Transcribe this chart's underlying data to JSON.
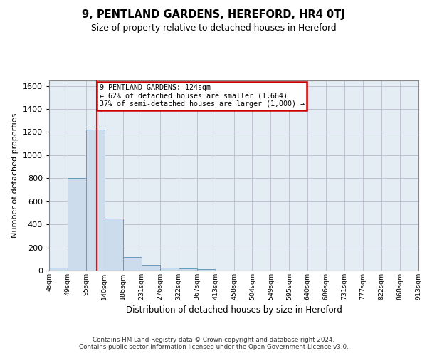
{
  "title": "9, PENTLAND GARDENS, HEREFORD, HR4 0TJ",
  "subtitle": "Size of property relative to detached houses in Hereford",
  "xlabel": "Distribution of detached houses by size in Hereford",
  "ylabel": "Number of detached properties",
  "bar_values": [
    25,
    800,
    1220,
    450,
    120,
    52,
    22,
    18,
    12,
    0,
    0,
    0,
    0,
    0,
    0,
    0,
    0,
    0,
    0,
    0
  ],
  "bar_labels": [
    "4sqm",
    "49sqm",
    "95sqm",
    "140sqm",
    "186sqm",
    "231sqm",
    "276sqm",
    "322sqm",
    "367sqm",
    "413sqm",
    "458sqm",
    "504sqm",
    "549sqm",
    "595sqm",
    "640sqm",
    "686sqm",
    "731sqm",
    "777sqm",
    "822sqm",
    "868sqm",
    "913sqm"
  ],
  "bar_color": "#ccdcec",
  "bar_edge_color": "#6699bb",
  "grid_color": "#bbbbcc",
  "bg_color": "#e4ecf4",
  "annotation_text_line1": "9 PENTLAND GARDENS: 124sqm",
  "annotation_text_line2": "← 62% of detached houses are smaller (1,664)",
  "annotation_text_line3": "37% of semi-detached houses are larger (1,000) →",
  "annotation_box_color": "#cc0000",
  "redline_x": 2.58,
  "ylim": [
    0,
    1650
  ],
  "yticks": [
    0,
    200,
    400,
    600,
    800,
    1000,
    1200,
    1400,
    1600
  ],
  "footer_line1": "Contains HM Land Registry data © Crown copyright and database right 2024.",
  "footer_line2": "Contains public sector information licensed under the Open Government Licence v3.0."
}
